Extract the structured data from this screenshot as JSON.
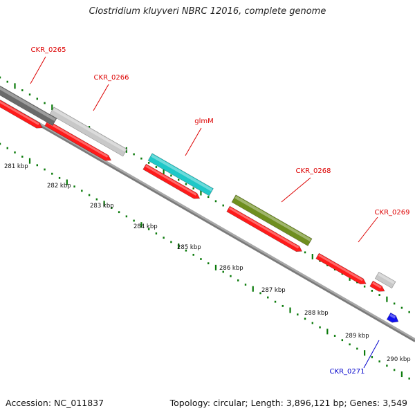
{
  "title": "Clostridium kluyveri NBRC 12016, complete genome",
  "footer": {
    "accession": "Accession: NC_011837",
    "summary": "Topology: circular; Length: 3,896,121 bp; Genes: 3,549"
  },
  "colors": {
    "backbone": "#7a7a7a",
    "cds": "#ff1a1a",
    "label_red": "#dd0000",
    "label_blue": "#0000cc",
    "tick": "#0a7a0a",
    "ckr_0265": "#6a6a6a",
    "ckr_0266": "#c8c8c8",
    "glmm": "#1ec8c8",
    "ckr_0268": "#6e8e1e",
    "ckr_0269": "#c8c8c8",
    "ckr_0271": "#1010ee"
  },
  "scale": {
    "labels": [
      "281 kbp",
      "282 kbp",
      "283 kbp",
      "284 kbp",
      "285 kbp",
      "286 kbp",
      "287 kbp",
      "288 kbp",
      "289 kbp",
      "290 kbp"
    ]
  },
  "genes": [
    {
      "name": "CKR_0265",
      "color_key": "ckr_0265",
      "label_color": "label_red"
    },
    {
      "name": "CKR_0266",
      "color_key": "ckr_0266",
      "label_color": "label_red"
    },
    {
      "name": "glmM",
      "color_key": "glmm",
      "label_color": "label_red"
    },
    {
      "name": "CKR_0268",
      "color_key": "ckr_0268",
      "label_color": "label_red"
    },
    {
      "name": "CKR_0269",
      "color_key": "ckr_0269",
      "label_color": "label_red"
    },
    {
      "name": "CKR_0271",
      "color_key": "ckr_0271",
      "label_color": "label_blue"
    }
  ]
}
